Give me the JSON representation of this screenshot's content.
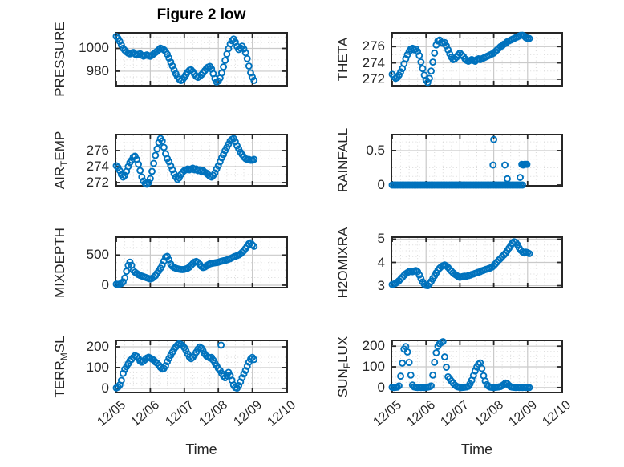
{
  "figure": {
    "title": "Figure 2 low",
    "xlabel": "Time",
    "x_tick_labels": [
      "12/05",
      "12/06",
      "12/07",
      "12/08",
      "12/09",
      "12/10"
    ],
    "x_range_days": [
      0,
      5
    ],
    "marker_color": "#0072BD",
    "axis_color": "#262626",
    "major_grid_color": "#cacaca",
    "minor_grid_color": "#d9d9d9",
    "background_color": "#ffffff",
    "grid": "on",
    "minor_grid": "dotted"
  },
  "chart_data": [
    {
      "type": "scatter",
      "name": "PRESSURE",
      "position": {
        "row": 0,
        "col": 0
      },
      "ylabel": [
        {
          "t": "PRESSURE"
        }
      ],
      "yticks": [
        980,
        1000
      ],
      "ytick_labels": [
        "980",
        "1000"
      ],
      "ylim": [
        968,
        1013
      ],
      "y_minor_step": 5,
      "x0": 0,
      "dx": 0.05,
      "y": [
        1010.5,
        1008.8,
        1006.2,
        1003.0,
        1000.1,
        998.3,
        996.9,
        995.8,
        995.2,
        996.0,
        996.4,
        995.1,
        994.2,
        994.9,
        995.3,
        994.0,
        993.2,
        993.8,
        994.3,
        993.6,
        993.1,
        994.0,
        995.2,
        996.4,
        997.5,
        998.9,
        1000.2,
        999.6,
        998.8,
        997.2,
        994.8,
        991.5,
        988.0,
        984.6,
        981.0,
        977.8,
        975.2,
        973.0,
        971.8,
        972.6,
        974.5,
        977.0,
        979.2,
        980.8,
        981.2,
        979.6,
        977.4,
        975.5,
        974.6,
        975.4,
        976.8,
        978.5,
        980.4,
        982.2,
        983.6,
        984.2,
        982.0,
        977.8,
        973.5,
        970.6,
        971.4,
        974.0,
        978.5,
        983.8,
        989.5,
        995.0,
        999.8,
        1003.9,
        1006.8,
        1008.2,
        1005.6,
        1001.8,
        999.0,
        1000.4,
        1002.0,
        999.5,
        996.2,
        991.0,
        984.5,
        978.6,
        974.8,
        971.9
      ]
    },
    {
      "type": "scatter",
      "name": "THETA",
      "position": {
        "row": 0,
        "col": 1
      },
      "ylabel": [
        {
          "t": "THETA"
        }
      ],
      "yticks": [
        272,
        274,
        276
      ],
      "ytick_labels": [
        "272",
        "274",
        "276"
      ],
      "ylim": [
        271.3,
        277.6
      ],
      "y_minor_step": 1,
      "x0": 0,
      "dx": 0.05,
      "y": [
        272.6,
        272.3,
        272.1,
        272.2,
        272.5,
        272.9,
        273.3,
        273.9,
        274.5,
        275.0,
        275.4,
        275.7,
        275.8,
        275.6,
        275.7,
        275.4,
        274.9,
        274.1,
        273.3,
        272.5,
        271.9,
        271.6,
        272.1,
        273.0,
        274.1,
        275.2,
        276.2,
        276.7,
        276.8,
        276.5,
        276.4,
        276.5,
        276.1,
        275.6,
        275.1,
        274.7,
        274.4,
        274.5,
        274.7,
        275.0,
        275.2,
        275.0,
        274.8,
        274.5,
        274.3,
        274.2,
        274.3,
        274.4,
        274.3,
        274.2,
        274.4,
        274.5,
        274.4,
        274.5,
        274.6,
        274.7,
        274.8,
        274.9,
        275.0,
        275.1,
        275.2,
        275.4,
        275.6,
        275.8,
        276.0,
        276.1,
        276.3,
        276.4,
        276.6,
        276.7,
        276.8,
        276.9,
        277.0,
        277.1,
        277.2,
        277.3,
        277.4,
        277.4,
        277.3,
        277.1,
        277.0,
        277.0
      ]
    },
    {
      "type": "scatter",
      "name": "AIR_TEMP",
      "position": {
        "row": 1,
        "col": 0
      },
      "ylabel": [
        {
          "t": "AIR"
        },
        {
          "t": "T",
          "sub": true
        },
        {
          "t": "EMP"
        }
      ],
      "yticks": [
        272,
        274,
        276
      ],
      "ytick_labels": [
        "272",
        "274",
        "276"
      ],
      "ylim": [
        271.7,
        277.9
      ],
      "y_minor_step": 1,
      "x0": 0,
      "dx": 0.05,
      "y": [
        274.1,
        273.9,
        273.5,
        273.0,
        272.7,
        272.9,
        273.4,
        274.0,
        274.5,
        274.8,
        275.2,
        275.3,
        274.9,
        274.3,
        273.5,
        272.7,
        272.2,
        271.9,
        271.8,
        272.0,
        272.5,
        273.4,
        274.4,
        275.4,
        276.2,
        277.0,
        277.5,
        277.2,
        276.4,
        275.6,
        275.0,
        274.6,
        274.1,
        273.6,
        273.1,
        272.7,
        272.4,
        272.6,
        273.0,
        273.3,
        273.5,
        273.6,
        273.7,
        273.6,
        273.7,
        273.8,
        273.6,
        273.7,
        273.5,
        273.6,
        273.4,
        273.5,
        273.3,
        273.2,
        273.0,
        272.8,
        272.7,
        272.9,
        273.2,
        273.7,
        274.1,
        274.6,
        275.1,
        275.5,
        276.0,
        276.4,
        276.8,
        277.2,
        277.4,
        277.5,
        277.1,
        276.6,
        276.2,
        275.8,
        275.5,
        275.2,
        275.0,
        274.9,
        274.9,
        274.8,
        274.8,
        274.9
      ]
    },
    {
      "type": "scatter",
      "name": "RAINFALL",
      "position": {
        "row": 1,
        "col": 1
      },
      "ylabel": [
        {
          "t": "RAINFALL"
        }
      ],
      "yticks": [
        0,
        0.5
      ],
      "ytick_labels": [
        "0",
        "0.5"
      ],
      "ylim": [
        0,
        0.72
      ],
      "y_minor_step": 0.125,
      "x0": 0,
      "dx": 0.05,
      "y": [
        0,
        0,
        0,
        0,
        0,
        0,
        0,
        0,
        0,
        0,
        0,
        0,
        0,
        0,
        0,
        0,
        0,
        0,
        0,
        0,
        0,
        0,
        0,
        0,
        0,
        0,
        0,
        0,
        0,
        0,
        0,
        0,
        0,
        0,
        0,
        0,
        0,
        0,
        0,
        0,
        0,
        0,
        0,
        0,
        0,
        0,
        0,
        0,
        0,
        0,
        0,
        0,
        0,
        0,
        0,
        0,
        0,
        0,
        0,
        0,
        0,
        0,
        0,
        0,
        0,
        0,
        0,
        0,
        0,
        0,
        0,
        0,
        0,
        0,
        0,
        0,
        0,
        0
      ],
      "points": [
        [
          2.98,
          0.29
        ],
        [
          3.0,
          0.66
        ],
        [
          3.33,
          0.29
        ],
        [
          3.4,
          0.09
        ],
        [
          3.78,
          0.11
        ],
        [
          3.83,
          0.3
        ],
        [
          3.87,
          0.29
        ],
        [
          3.91,
          0.3
        ],
        [
          3.95,
          0.3
        ],
        [
          3.98,
          0.3
        ]
      ]
    },
    {
      "type": "scatter",
      "name": "MIXDEPTH",
      "position": {
        "row": 2,
        "col": 0
      },
      "ylabel": [
        {
          "t": "MIXDEPTH"
        }
      ],
      "yticks": [
        0,
        500
      ],
      "ytick_labels": [
        "0",
        "500"
      ],
      "ylim": [
        -27,
        783
      ],
      "y_minor_step": 125,
      "x0": 0,
      "dx": 0.05,
      "y": [
        18,
        12,
        20,
        28,
        55,
        120,
        230,
        330,
        382,
        330,
        245,
        215,
        195,
        175,
        162,
        152,
        142,
        132,
        122,
        112,
        102,
        112,
        132,
        158,
        198,
        238,
        282,
        335,
        400,
        465,
        478,
        420,
        352,
        312,
        292,
        282,
        272,
        266,
        261,
        259,
        263,
        271,
        282,
        301,
        330,
        358,
        383,
        394,
        379,
        349,
        312,
        292,
        301,
        319,
        339,
        354,
        360,
        366,
        371,
        375,
        381,
        390,
        399,
        405,
        411,
        419,
        429,
        440,
        454,
        469,
        480,
        490,
        501,
        519,
        544,
        571,
        609,
        649,
        688,
        703,
        668,
        645
      ]
    },
    {
      "type": "scatter",
      "name": "H2OMIXRA",
      "position": {
        "row": 2,
        "col": 1
      },
      "ylabel": [
        {
          "t": "H2OMIXRA"
        }
      ],
      "yticks": [
        3,
        4,
        5
      ],
      "ytick_labels": [
        "3",
        "4",
        "5"
      ],
      "ylim": [
        2.95,
        5.05
      ],
      "y_minor_step": 0.25,
      "x0": 0,
      "dx": 0.05,
      "y": [
        3.05,
        3.07,
        3.1,
        3.15,
        3.21,
        3.28,
        3.36,
        3.44,
        3.51,
        3.56,
        3.6,
        3.61,
        3.6,
        3.63,
        3.65,
        3.6,
        3.46,
        3.3,
        3.16,
        3.06,
        3.01,
        3.0,
        3.08,
        3.18,
        3.3,
        3.42,
        3.55,
        3.66,
        3.75,
        3.82,
        3.86,
        3.89,
        3.85,
        3.78,
        3.7,
        3.62,
        3.55,
        3.49,
        3.44,
        3.39,
        3.36,
        3.38,
        3.4,
        3.41,
        3.41,
        3.43,
        3.45,
        3.48,
        3.5,
        3.53,
        3.55,
        3.58,
        3.6,
        3.64,
        3.66,
        3.69,
        3.71,
        3.74,
        3.76,
        3.8,
        3.86,
        3.94,
        4.02,
        4.1,
        4.17,
        4.25,
        4.32,
        4.4,
        4.5,
        4.61,
        4.73,
        4.83,
        4.89,
        4.86,
        4.76,
        4.62,
        4.52,
        4.45,
        4.41,
        4.44,
        4.42,
        4.38
      ]
    },
    {
      "type": "scatter",
      "name": "TERR_MSL",
      "position": {
        "row": 3,
        "col": 0
      },
      "ylabel": [
        {
          "t": "TERR"
        },
        {
          "t": "M",
          "sub": true
        },
        {
          "t": "SL"
        }
      ],
      "yticks": [
        0,
        100,
        200
      ],
      "ytick_labels": [
        "0",
        "100",
        "200"
      ],
      "ylim": [
        -16,
        227
      ],
      "y_minor_step": 25,
      "x0": 0,
      "dx": 0.05,
      "y": [
        2,
        6,
        16,
        38,
        72,
        92,
        104,
        118,
        133,
        140,
        149,
        158,
        154,
        144,
        131,
        126,
        131,
        139,
        146,
        150,
        146,
        141,
        136,
        127,
        121,
        112,
        101,
        93,
        96,
        109,
        128,
        144,
        159,
        174,
        189,
        199,
        209,
        215,
        212,
        206,
        196,
        181,
        166,
        151,
        143,
        149,
        161,
        174,
        189,
        199,
        194,
        181,
        166,
        156,
        151,
        146,
        149,
        136,
        121,
        109,
        96,
        86,
        72,
        59,
        51,
        61,
        77,
        61,
        39,
        16,
        4,
        1,
        13,
        31,
        51,
        69,
        86,
        106,
        126,
        141,
        149,
        139
      ],
      "points": [
        [
          3.08,
          208
        ]
      ]
    },
    {
      "type": "scatter",
      "name": "SUN_FLUX",
      "position": {
        "row": 3,
        "col": 1
      },
      "ylabel": [
        {
          "t": "SUN"
        },
        {
          "t": "F",
          "sub": true
        },
        {
          "t": "LUX"
        }
      ],
      "yticks": [
        0,
        100,
        200
      ],
      "ytick_labels": [
        "0",
        "100",
        "200"
      ],
      "ylim": [
        -20,
        224
      ],
      "y_minor_step": 25,
      "x0": 0,
      "dx": 0.05,
      "y": [
        1,
        0,
        1,
        2,
        8,
        55,
        118,
        186,
        198,
        172,
        121,
        60,
        12,
        3,
        1,
        0,
        1,
        0,
        1,
        0,
        1,
        2,
        4,
        8,
        60,
        122,
        168,
        199,
        212,
        218,
        222,
        148,
        98,
        52,
        42,
        31,
        21,
        12,
        6,
        3,
        1,
        0,
        1,
        2,
        3,
        6,
        18,
        35,
        58,
        80,
        99,
        113,
        119,
        92,
        57,
        31,
        14,
        6,
        2,
        1,
        0,
        1,
        2,
        3,
        5,
        9,
        15,
        22,
        18,
        10,
        4,
        2,
        1,
        0,
        1,
        0,
        1,
        0,
        1,
        0,
        1,
        0
      ]
    }
  ]
}
